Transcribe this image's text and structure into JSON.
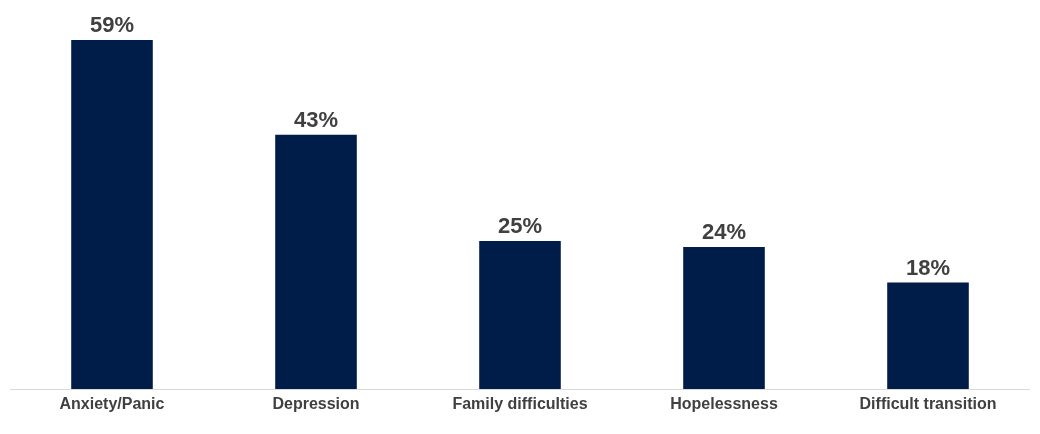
{
  "chart_data": {
    "type": "bar",
    "categories": [
      "Anxiety/Panic",
      "Depression",
      "Family difficulties",
      "Hopelessness",
      "Difficult transition"
    ],
    "values": [
      59,
      43,
      25,
      24,
      18
    ],
    "value_labels": [
      "59%",
      "43%",
      "25%",
      "24%",
      "18%"
    ],
    "color": "#001d4a",
    "grid": false,
    "legend": false
  }
}
